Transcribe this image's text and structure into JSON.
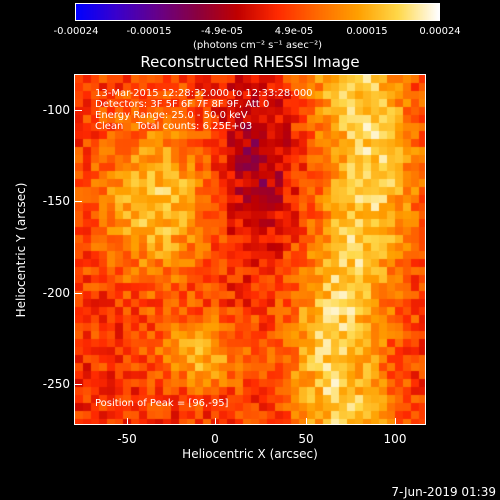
{
  "colorbar": {
    "tick_labels": [
      "-0.00024",
      "-0.00015",
      "-4.9e-05",
      "4.9e-05",
      "0.00015",
      "0.00024"
    ],
    "units": "(photons cm⁻² s⁻¹ asec⁻²)",
    "colormap": [
      "#0000ff",
      "#3a00cc",
      "#66008a",
      "#8a0040",
      "#c00000",
      "#ff2a00",
      "#ff6a00",
      "#ffa000",
      "#ffd84a",
      "#ffffff"
    ]
  },
  "plot": {
    "title": "Reconstructed RHESSI Image",
    "info_lines": [
      "13-Mar-2015 12:28:32.000 to 12:33:28.000",
      "Detectors: 3F 5F 6F 7F 8F 9F, Att 0",
      "Energy Range: 25.0 - 50.0 keV",
      "Clean    Total counts: 6.25E+03"
    ],
    "peak_label": "Position of Peak = [96,-95]",
    "xlabel": "Heliocentric X (arcsec)",
    "ylabel": "Heliocentric Y (arcsec)",
    "x_tick_labels": [
      "-50",
      "0",
      "50",
      "100"
    ],
    "y_tick_labels": [
      "-100",
      "-150",
      "-200",
      "-250"
    ]
  },
  "footer": {
    "date": "7-Jun-2019 01:39"
  }
}
